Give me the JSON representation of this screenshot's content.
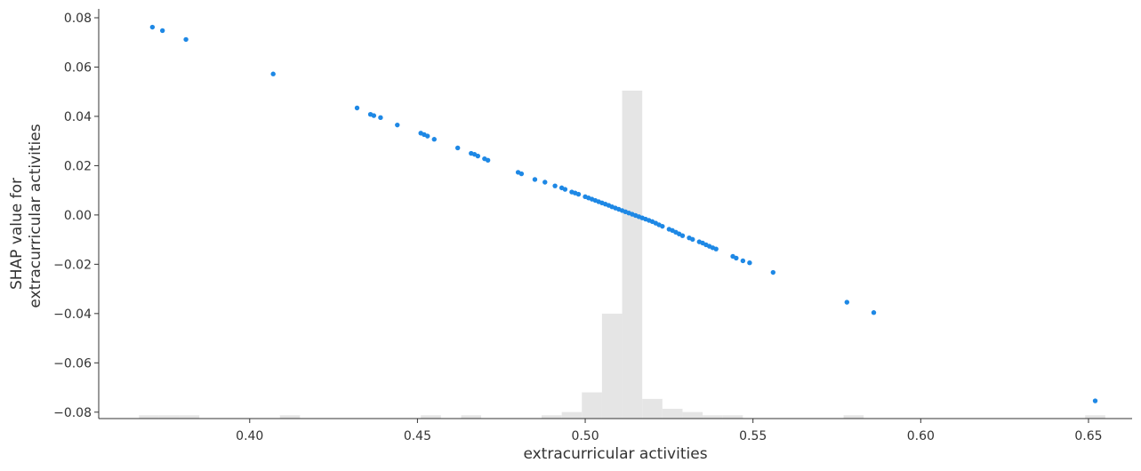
{
  "chart_data": {
    "type": "scatter",
    "title": "",
    "xlabel": "extracurricular activities",
    "ylabel_lines": [
      "SHAP value for",
      "extracurricular activities"
    ],
    "xlim": [
      0.355,
      0.663
    ],
    "ylim": [
      -0.0826,
      0.0836
    ],
    "x_ticks": [
      0.4,
      0.45,
      0.5,
      0.55,
      0.6,
      0.65
    ],
    "x_tick_labels": [
      "0.40",
      "0.45",
      "0.50",
      "0.55",
      "0.60",
      "0.65"
    ],
    "y_ticks": [
      0.08,
      0.06,
      0.04,
      0.02,
      0.0,
      -0.02,
      -0.04,
      -0.06,
      -0.08
    ],
    "y_tick_labels": [
      "0.08",
      "0.06",
      "0.04",
      "0.02",
      "0.00",
      "−0.02",
      "−0.04",
      "−0.06",
      "−0.08"
    ],
    "grid": false,
    "point_color": "#1e88e5",
    "histogram_color": "#e5e5e5",
    "axis_color": "#333333",
    "points": [
      {
        "x": 0.371,
        "y": 0.0762
      },
      {
        "x": 0.374,
        "y": 0.0748
      },
      {
        "x": 0.381,
        "y": 0.0712
      },
      {
        "x": 0.407,
        "y": 0.0572
      },
      {
        "x": 0.432,
        "y": 0.0434
      },
      {
        "x": 0.436,
        "y": 0.0408
      },
      {
        "x": 0.437,
        "y": 0.0403
      },
      {
        "x": 0.439,
        "y": 0.0395
      },
      {
        "x": 0.444,
        "y": 0.0365
      },
      {
        "x": 0.451,
        "y": 0.0332
      },
      {
        "x": 0.452,
        "y": 0.0326
      },
      {
        "x": 0.453,
        "y": 0.032
      },
      {
        "x": 0.455,
        "y": 0.0307
      },
      {
        "x": 0.462,
        "y": 0.0272
      },
      {
        "x": 0.466,
        "y": 0.025
      },
      {
        "x": 0.467,
        "y": 0.0246
      },
      {
        "x": 0.468,
        "y": 0.0239
      },
      {
        "x": 0.47,
        "y": 0.0228
      },
      {
        "x": 0.471,
        "y": 0.0222
      },
      {
        "x": 0.48,
        "y": 0.0173
      },
      {
        "x": 0.481,
        "y": 0.0167
      },
      {
        "x": 0.485,
        "y": 0.0144
      },
      {
        "x": 0.488,
        "y": 0.0133
      },
      {
        "x": 0.491,
        "y": 0.0118
      },
      {
        "x": 0.493,
        "y": 0.011
      },
      {
        "x": 0.494,
        "y": 0.0104
      },
      {
        "x": 0.496,
        "y": 0.0093
      },
      {
        "x": 0.497,
        "y": 0.0089
      },
      {
        "x": 0.498,
        "y": 0.0084
      },
      {
        "x": 0.5,
        "y": 0.0074
      },
      {
        "x": 0.501,
        "y": 0.0069
      },
      {
        "x": 0.502,
        "y": 0.0064
      },
      {
        "x": 0.503,
        "y": 0.0059
      },
      {
        "x": 0.504,
        "y": 0.0054
      },
      {
        "x": 0.505,
        "y": 0.0049
      },
      {
        "x": 0.506,
        "y": 0.0044
      },
      {
        "x": 0.507,
        "y": 0.0039
      },
      {
        "x": 0.508,
        "y": 0.0033
      },
      {
        "x": 0.509,
        "y": 0.0028
      },
      {
        "x": 0.51,
        "y": 0.0023
      },
      {
        "x": 0.511,
        "y": 0.0018
      },
      {
        "x": 0.512,
        "y": 0.0013
      },
      {
        "x": 0.513,
        "y": 0.0008
      },
      {
        "x": 0.514,
        "y": 0.0003
      },
      {
        "x": 0.515,
        "y": -0.0002
      },
      {
        "x": 0.516,
        "y": -0.0007
      },
      {
        "x": 0.517,
        "y": -0.0012
      },
      {
        "x": 0.518,
        "y": -0.0017
      },
      {
        "x": 0.519,
        "y": -0.0022
      },
      {
        "x": 0.52,
        "y": -0.0027
      },
      {
        "x": 0.521,
        "y": -0.0033
      },
      {
        "x": 0.522,
        "y": -0.004
      },
      {
        "x": 0.523,
        "y": -0.0046
      },
      {
        "x": 0.525,
        "y": -0.0058
      },
      {
        "x": 0.526,
        "y": -0.0063
      },
      {
        "x": 0.527,
        "y": -0.007
      },
      {
        "x": 0.528,
        "y": -0.0077
      },
      {
        "x": 0.529,
        "y": -0.0084
      },
      {
        "x": 0.531,
        "y": -0.0093
      },
      {
        "x": 0.532,
        "y": -0.0099
      },
      {
        "x": 0.534,
        "y": -0.0109
      },
      {
        "x": 0.535,
        "y": -0.0114
      },
      {
        "x": 0.536,
        "y": -0.0121
      },
      {
        "x": 0.537,
        "y": -0.0127
      },
      {
        "x": 0.538,
        "y": -0.0133
      },
      {
        "x": 0.539,
        "y": -0.0138
      },
      {
        "x": 0.544,
        "y": -0.0168
      },
      {
        "x": 0.545,
        "y": -0.0175
      },
      {
        "x": 0.547,
        "y": -0.0186
      },
      {
        "x": 0.549,
        "y": -0.0194
      },
      {
        "x": 0.556,
        "y": -0.0233
      },
      {
        "x": 0.578,
        "y": -0.0354
      },
      {
        "x": 0.586,
        "y": -0.0396
      },
      {
        "x": 0.652,
        "y": -0.0754
      }
    ],
    "histogram": {
      "bin_edges": [
        0.367,
        0.373,
        0.379,
        0.385,
        0.391,
        0.397,
        0.403,
        0.409,
        0.415,
        0.421,
        0.427,
        0.433,
        0.439,
        0.445,
        0.451,
        0.457,
        0.463,
        0.469,
        0.475,
        0.481,
        0.487,
        0.493,
        0.499,
        0.505,
        0.511,
        0.517,
        0.523,
        0.529,
        0.535,
        0.541,
        0.547,
        0.553,
        0.559,
        0.565,
        0.571,
        0.577,
        0.583,
        0.589,
        0.595,
        0.601,
        0.607,
        0.613,
        0.619,
        0.625,
        0.631,
        0.637,
        0.643,
        0.649,
        0.655
      ],
      "counts": [
        1,
        1,
        1,
        0,
        0,
        0,
        0,
        1,
        0,
        0,
        0,
        0,
        0,
        0,
        1,
        0,
        1,
        0,
        0,
        0,
        1,
        2,
        8,
        32,
        100,
        6,
        3,
        2,
        1,
        1,
        0,
        0,
        0,
        0,
        0,
        1,
        0,
        0,
        0,
        0,
        0,
        0,
        0,
        0,
        0,
        0,
        0,
        1
      ]
    }
  }
}
